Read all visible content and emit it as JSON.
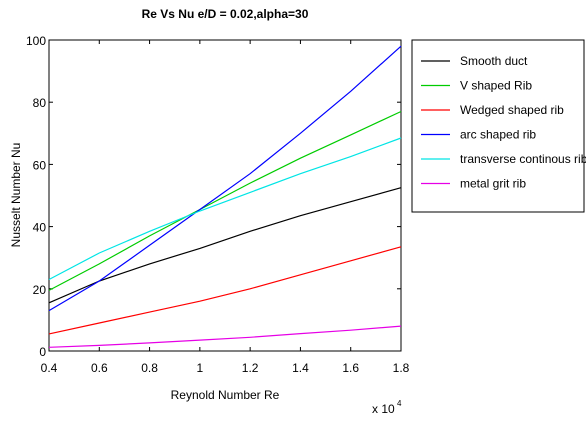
{
  "chart_data": {
    "type": "line",
    "title": "Re Vs Nu e/D = 0.02,alpha=30",
    "xlabel": "Reynold Number Re",
    "ylabel": "Nusselt Number Nu",
    "x_multiplier_base": "x 10",
    "x_multiplier_exp": "4",
    "xlim": [
      0.4,
      1.8
    ],
    "ylim": [
      0,
      100
    ],
    "xticks": [
      0.4,
      0.6,
      0.8,
      1.0,
      1.2,
      1.4,
      1.6,
      1.8
    ],
    "xtick_labels": [
      "0.4",
      "0.6",
      "0.8",
      "1",
      "1.2",
      "1.4",
      "1.6",
      "1.8"
    ],
    "yticks": [
      0,
      20,
      40,
      60,
      80,
      100
    ],
    "ytick_labels": [
      "0",
      "20",
      "40",
      "60",
      "80",
      "100"
    ],
    "grid": false,
    "legend_position": "outside-right",
    "x": [
      0.4,
      0.6,
      0.8,
      1.0,
      1.2,
      1.4,
      1.6,
      1.8
    ],
    "series": [
      {
        "name": "Smooth duct",
        "color": "#000000",
        "values": [
          15.5,
          22.5,
          28,
          33,
          38.5,
          43.5,
          48,
          52.5
        ]
      },
      {
        "name": "V shaped Rib",
        "color": "#00cc00",
        "values": [
          19.5,
          28,
          37,
          45.5,
          54,
          62,
          69.5,
          77
        ]
      },
      {
        "name": "Wedged shaped rib",
        "color": "#ff0000",
        "values": [
          5.5,
          9,
          12.5,
          16,
          20,
          24.5,
          29,
          33.5
        ]
      },
      {
        "name": "arc shaped rib",
        "color": "#0000ff",
        "values": [
          13,
          22.5,
          34,
          45.5,
          57,
          70,
          83.5,
          98
        ]
      },
      {
        "name": "transverse continous rib",
        "color": "#00e5e5",
        "values": [
          23,
          31.5,
          38.5,
          45,
          51,
          57,
          62.5,
          68.5
        ]
      },
      {
        "name": "metal grit rib",
        "color": "#e600e6",
        "values": [
          1.2,
          1.8,
          2.6,
          3.5,
          4.4,
          5.6,
          6.7,
          8
        ]
      }
    ]
  }
}
